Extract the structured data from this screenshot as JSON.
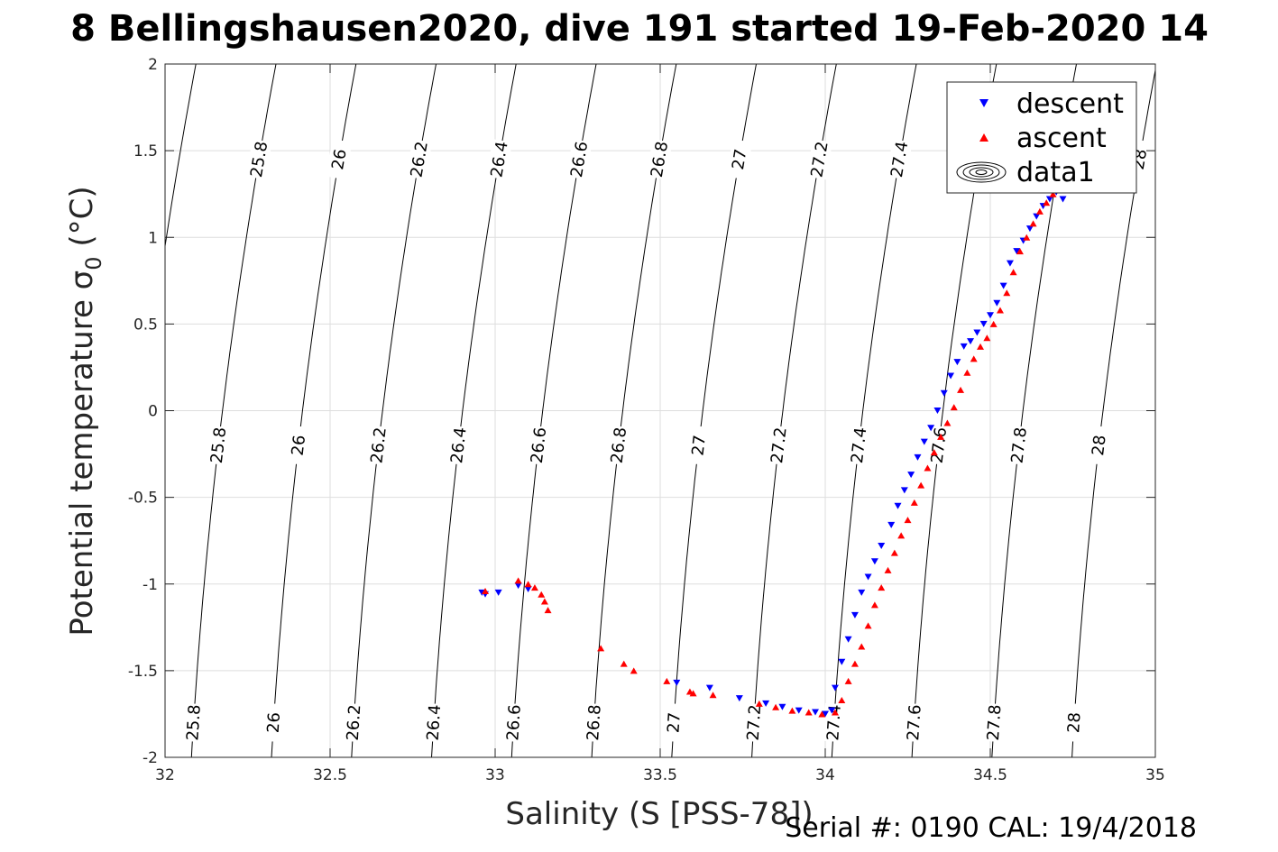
{
  "chart_data": {
    "type": "scatter",
    "title": "8 Bellingshausen2020, dive 191 started 19-Feb-2020 14",
    "xlabel": "Salinity (S [PSS-78])",
    "ylabel": "Potential temperature σ",
    "ylabel_sub": "0",
    "ylabel_unit": " (°C)",
    "xlim": [
      32,
      35
    ],
    "ylim": [
      -2,
      2
    ],
    "xticks": [
      32,
      32.5,
      33,
      33.5,
      34,
      34.5,
      35
    ],
    "xtick_labels": [
      "32",
      "32.5",
      "33",
      "33.5",
      "34",
      "34.5",
      "35"
    ],
    "yticks": [
      -2,
      -1.5,
      -1,
      -0.5,
      0,
      0.5,
      1,
      1.5,
      2
    ],
    "ytick_labels": [
      "-2",
      "-1.5",
      "-1",
      "-0.5",
      "0",
      "0.5",
      "1",
      "1.5",
      "2"
    ],
    "grid": true,
    "legend_position": "top-right",
    "density_contours": {
      "levels": [
        25.6,
        25.8,
        26.0,
        26.2,
        26.4,
        26.6,
        26.8,
        27.0,
        27.2,
        27.4,
        27.6,
        27.8,
        28.0
      ],
      "labels": [
        "25.8",
        "26",
        "26.2",
        "26.4",
        "26.6",
        "26.8",
        "27",
        "27.2",
        "27.4",
        "27.6",
        "27.8",
        "28"
      ]
    },
    "series": [
      {
        "name": "descent",
        "marker": "triangle-down",
        "color": "#0000ff",
        "x": [
          32.96,
          32.97,
          33.01,
          33.07,
          33.1,
          33.55,
          33.65,
          33.74,
          33.82,
          33.87,
          33.92,
          33.97,
          34.0,
          34.02,
          34.03,
          34.05,
          34.07,
          34.09,
          34.11,
          34.13,
          34.15,
          34.17,
          34.2,
          34.22,
          34.24,
          34.26,
          34.28,
          34.3,
          34.32,
          34.34,
          34.36,
          34.38,
          34.4,
          34.42,
          34.44,
          34.46,
          34.48,
          34.5,
          34.52,
          34.54,
          34.56,
          34.58,
          34.6,
          34.62,
          34.64,
          34.66,
          34.68,
          34.7,
          34.72
        ],
        "y": [
          -1.05,
          -1.06,
          -1.05,
          -1.01,
          -1.03,
          -1.57,
          -1.6,
          -1.66,
          -1.69,
          -1.71,
          -1.73,
          -1.74,
          -1.75,
          -1.73,
          -1.6,
          -1.45,
          -1.32,
          -1.18,
          -1.05,
          -0.96,
          -0.87,
          -0.78,
          -0.66,
          -0.55,
          -0.46,
          -0.37,
          -0.27,
          -0.18,
          -0.1,
          0.0,
          0.1,
          0.2,
          0.28,
          0.37,
          0.4,
          0.45,
          0.5,
          0.55,
          0.62,
          0.72,
          0.85,
          0.92,
          0.98,
          1.05,
          1.12,
          1.18,
          1.22,
          1.26,
          1.22
        ]
      },
      {
        "name": "ascent",
        "marker": "triangle-up",
        "color": "#ff0000",
        "x": [
          32.97,
          33.07,
          33.1,
          33.12,
          33.14,
          33.15,
          33.16,
          33.32,
          33.39,
          33.42,
          33.52,
          33.59,
          33.6,
          33.66,
          33.8,
          33.85,
          33.9,
          33.95,
          33.99,
          34.03,
          34.05,
          34.07,
          34.09,
          34.11,
          34.13,
          34.15,
          34.17,
          34.19,
          34.21,
          34.23,
          34.25,
          34.27,
          34.29,
          34.31,
          34.33,
          34.35,
          34.37,
          34.39,
          34.41,
          34.43,
          34.45,
          34.47,
          34.49,
          34.51,
          34.53,
          34.55,
          34.57,
          34.59,
          34.61,
          34.63,
          34.65,
          34.67,
          34.69,
          34.71
        ],
        "y": [
          -1.04,
          -0.98,
          -1.0,
          -1.02,
          -1.06,
          -1.1,
          -1.15,
          -1.37,
          -1.46,
          -1.5,
          -1.56,
          -1.62,
          -1.63,
          -1.64,
          -1.69,
          -1.71,
          -1.73,
          -1.74,
          -1.75,
          -1.74,
          -1.67,
          -1.56,
          -1.46,
          -1.36,
          -1.24,
          -1.12,
          -1.02,
          -0.92,
          -0.82,
          -0.72,
          -0.63,
          -0.53,
          -0.43,
          -0.33,
          -0.24,
          -0.15,
          -0.07,
          0.02,
          0.12,
          0.22,
          0.3,
          0.37,
          0.42,
          0.5,
          0.58,
          0.68,
          0.8,
          0.92,
          1.0,
          1.08,
          1.15,
          1.2,
          1.25,
          1.3
        ]
      },
      {
        "name": "data1",
        "marker": "contour",
        "color": "#000000"
      }
    ]
  },
  "footer": {
    "serial": "Serial #: 0190  CAL: 19/4/2018"
  }
}
